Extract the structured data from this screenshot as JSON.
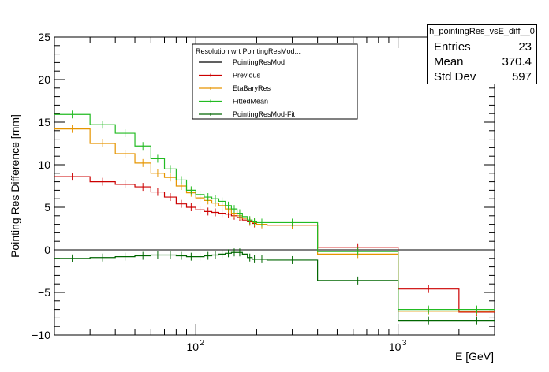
{
  "stats": {
    "title": "h_pointingRes_vsE_diff__0",
    "rows": [
      {
        "label": "Entries",
        "value": "23"
      },
      {
        "label": "Mean",
        "value": "370.4"
      },
      {
        "label": "Std Dev",
        "value": "597"
      }
    ]
  },
  "legend": {
    "title": "Resolution wrt PointingResMod...",
    "entries": [
      "PointingResMod",
      "Previous",
      "EtaBaryRes",
      "FittedMean",
      "PointingResMod-Fit"
    ]
  },
  "chart_data": {
    "type": "line",
    "subtype": "step-histogram",
    "xlabel": "E [GeV]",
    "ylabel": "Pointing Res Difference [mm]",
    "xscale": "log",
    "xlim": [
      20,
      3000
    ],
    "ylim": [
      -10,
      25
    ],
    "yticks": [
      -10,
      -5,
      0,
      5,
      10,
      15,
      20,
      25
    ],
    "xtick_labels": [
      {
        "value": 100,
        "base": "10",
        "exp": "2"
      },
      {
        "value": 1000,
        "base": "10",
        "exp": "3"
      }
    ],
    "bin_edges": [
      20,
      30,
      40,
      50,
      60,
      70,
      80,
      90,
      100,
      110,
      120,
      130,
      140,
      150,
      160,
      170,
      180,
      190,
      200,
      225,
      400,
      1000,
      2000,
      3000
    ],
    "series": [
      {
        "name": "PointingResMod",
        "color": "#000000",
        "values": [
          0,
          0,
          0,
          0,
          0,
          0,
          0,
          0,
          0,
          0,
          0,
          0,
          0,
          0,
          0,
          0,
          0,
          0,
          0,
          0,
          0,
          0,
          0
        ]
      },
      {
        "name": "Previous",
        "color": "#cc0000",
        "values": [
          8.6,
          8.0,
          7.7,
          7.4,
          6.8,
          6.2,
          5.4,
          5.0,
          4.7,
          4.5,
          4.4,
          4.3,
          4.2,
          4.0,
          3.8,
          3.5,
          3.3,
          3.1,
          3.0,
          2.9,
          0.3,
          -4.6,
          -7.3
        ]
      },
      {
        "name": "EtaBaryRes",
        "color": "#e69500",
        "values": [
          14.2,
          12.5,
          11.3,
          10.2,
          9.0,
          8.5,
          7.5,
          6.7,
          6.1,
          5.8,
          5.5,
          5.2,
          4.8,
          4.3,
          4.0,
          3.7,
          3.4,
          3.2,
          3.0,
          2.9,
          -0.5,
          -7.2,
          -7.2
        ]
      },
      {
        "name": "FittedMean",
        "color": "#22bb22",
        "values": [
          15.9,
          14.7,
          13.7,
          12.2,
          10.7,
          9.5,
          8.2,
          7.0,
          6.5,
          6.2,
          6.0,
          5.7,
          5.2,
          4.8,
          4.3,
          3.9,
          3.5,
          3.3,
          3.2,
          3.2,
          -0.2,
          -7.0,
          -7.0
        ]
      },
      {
        "name": "PointingResMod-Fit",
        "color": "#006600",
        "values": [
          -1.0,
          -0.9,
          -0.8,
          -0.7,
          -0.6,
          -0.6,
          -0.7,
          -0.8,
          -0.8,
          -0.7,
          -0.6,
          -0.5,
          -0.4,
          -0.3,
          -0.3,
          -0.5,
          -0.9,
          -1.1,
          -1.1,
          -1.2,
          -3.6,
          -8.3,
          -8.3
        ]
      }
    ],
    "grid": false,
    "legend_position": "top-center"
  }
}
